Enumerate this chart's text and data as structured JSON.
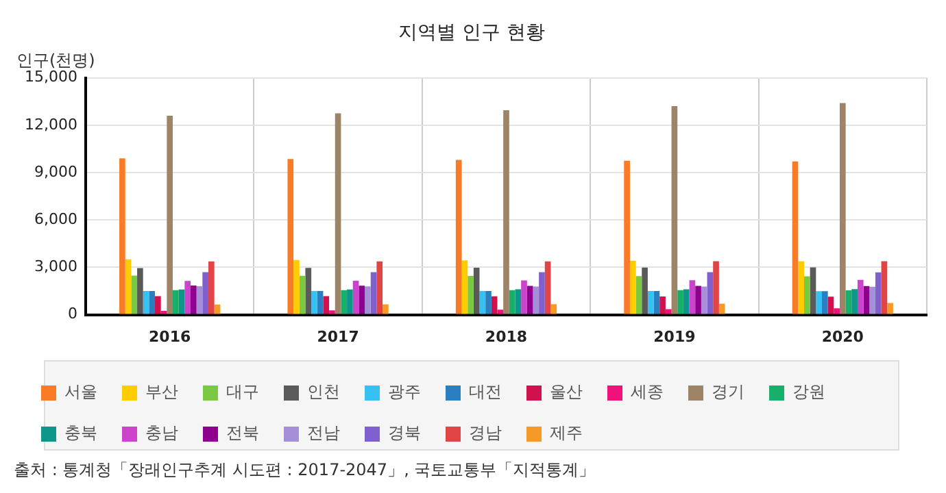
{
  "chart_data": {
    "type": "bar",
    "title": "지역별 인구 현황",
    "ylabel": "인구(천명)",
    "annotations": [
      "출처 : 통계청「장래인구추계 시도편 : 2017-2047」, 국토교통부「지적통계」"
    ],
    "categories": [
      "2016",
      "2017",
      "2018",
      "2019",
      "2020"
    ],
    "ylim": [
      0,
      15000
    ],
    "yticks": [
      {
        "value": 0,
        "label": "0"
      },
      {
        "value": 3000,
        "label": "3,000"
      },
      {
        "value": 6000,
        "label": "6,000"
      },
      {
        "value": 9000,
        "label": "9,000"
      },
      {
        "value": 12000,
        "label": "12,000"
      },
      {
        "value": 15000,
        "label": "15,000"
      }
    ],
    "grid": true,
    "legend": "bottom",
    "series": [
      {
        "name": "서울",
        "color": "#fa7b25",
        "values": [
          9900,
          9860,
          9800,
          9750,
          9700
        ]
      },
      {
        "name": "부산",
        "color": "#ffcc00",
        "values": [
          3500,
          3460,
          3440,
          3420,
          3390
        ]
      },
      {
        "name": "대구",
        "color": "#7ac943",
        "values": [
          2480,
          2470,
          2450,
          2440,
          2430
        ]
      },
      {
        "name": "인천",
        "color": "#5a5a5a",
        "values": [
          2950,
          2960,
          2970,
          2980,
          3000
        ]
      },
      {
        "name": "광주",
        "color": "#37c0f2",
        "values": [
          1500,
          1500,
          1500,
          1500,
          1490
        ]
      },
      {
        "name": "대전",
        "color": "#2a7fc1",
        "values": [
          1500,
          1500,
          1500,
          1500,
          1490
        ]
      },
      {
        "name": "울산",
        "color": "#d0114e",
        "values": [
          1170,
          1170,
          1160,
          1150,
          1140
        ]
      },
      {
        "name": "세종",
        "color": "#f0127a",
        "values": [
          240,
          280,
          320,
          350,
          400
        ]
      },
      {
        "name": "경기",
        "color": "#9d8466",
        "values": [
          12600,
          12750,
          12950,
          13200,
          13400
        ]
      },
      {
        "name": "강원",
        "color": "#17b06b",
        "values": [
          1550,
          1550,
          1550,
          1550,
          1540
        ]
      },
      {
        "name": "충북",
        "color": "#0e968a",
        "values": [
          1600,
          1600,
          1610,
          1610,
          1620
        ]
      },
      {
        "name": "충남",
        "color": "#cc44cc",
        "values": [
          2140,
          2150,
          2170,
          2180,
          2200
        ]
      },
      {
        "name": "전북",
        "color": "#8f008f",
        "values": [
          1850,
          1840,
          1830,
          1820,
          1810
        ]
      },
      {
        "name": "전남",
        "color": "#a68fd9",
        "values": [
          1800,
          1790,
          1780,
          1780,
          1770
        ]
      },
      {
        "name": "경북",
        "color": "#8060cc",
        "values": [
          2690,
          2690,
          2690,
          2690,
          2680
        ]
      },
      {
        "name": "경남",
        "color": "#e04444",
        "values": [
          3370,
          3380,
          3380,
          3390,
          3390
        ]
      },
      {
        "name": "제주",
        "color": "#f59a28",
        "values": [
          640,
          650,
          670,
          700,
          740
        ]
      }
    ]
  }
}
